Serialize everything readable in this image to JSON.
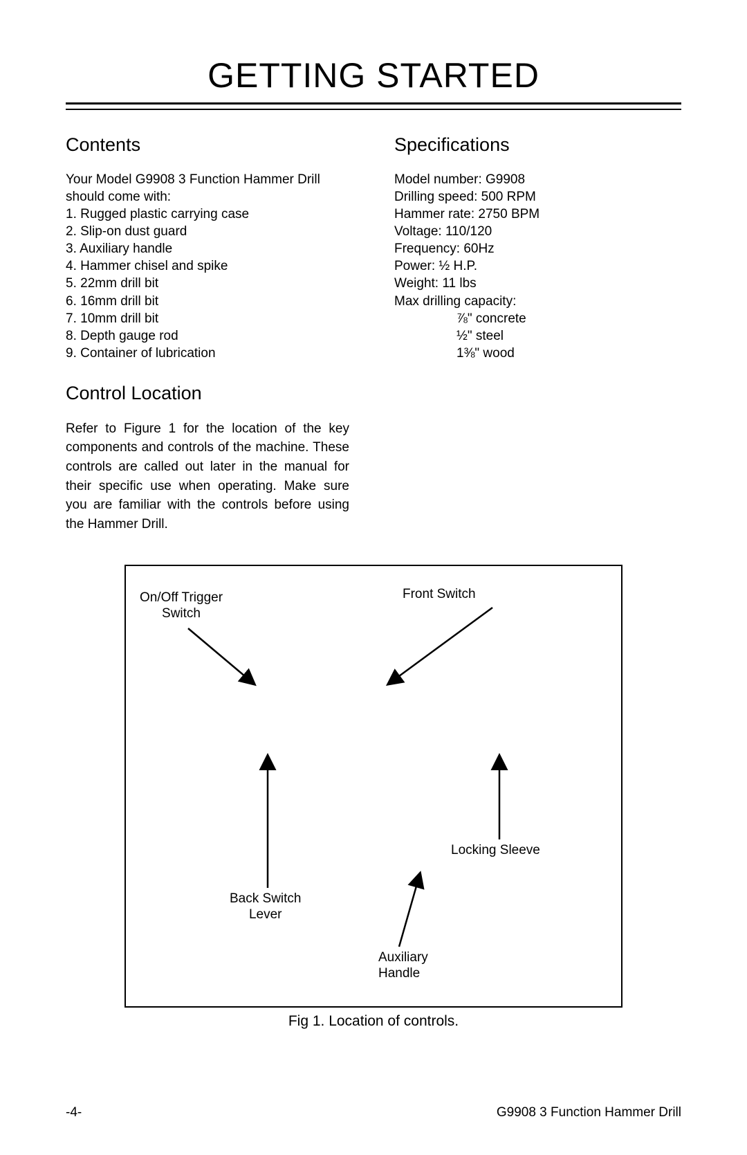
{
  "title": "GETTING STARTED",
  "contents": {
    "heading": "Contents",
    "intro": "Your Model G9908 3 Function Hammer Drill should come with:",
    "items": [
      "1. Rugged plastic carrying case",
      "2. Slip-on dust guard",
      "3. Auxiliary handle",
      "4. Hammer chisel and spike",
      "5. 22mm drill bit",
      "6. 16mm drill bit",
      "7. 10mm drill bit",
      "8. Depth gauge rod",
      "9. Container of lubrication"
    ]
  },
  "specs": {
    "heading": "Specifications",
    "lines": [
      "Model number: G9908",
      "Drilling speed: 500 RPM",
      "Hammer rate: 2750 BPM",
      "Voltage: 110/120",
      "Frequency: 60Hz",
      "Power: ½ H.P.",
      "Weight: 11 lbs",
      "Max drilling capacity:"
    ],
    "capacity": [
      "⅞\" concrete",
      "½\" steel",
      "1⅜\" wood"
    ]
  },
  "control": {
    "heading": "Control Location",
    "para": "Refer to Figure 1 for the location of the key components and controls of the machine. These controls are called out later in the manual for their specific use when operating. Make sure you are familiar with the controls before using the Hammer Drill."
  },
  "figure": {
    "caption": "Fig 1. Location of controls.",
    "labels": {
      "onoff": "On/Off Trigger\nSwitch",
      "front": "Front Switch",
      "back": "Back Switch\nLever",
      "aux": "Auxiliary\nHandle",
      "lock": "Locking Sleeve"
    },
    "arrows": {
      "color": "#000000",
      "stroke_width": 2.5,
      "head_size": 14
    }
  },
  "footer": {
    "left": "-4-",
    "right": "G9908 3 Function Hammer Drill"
  },
  "colors": {
    "text": "#000000",
    "background": "#ffffff",
    "rule": "#000000"
  }
}
